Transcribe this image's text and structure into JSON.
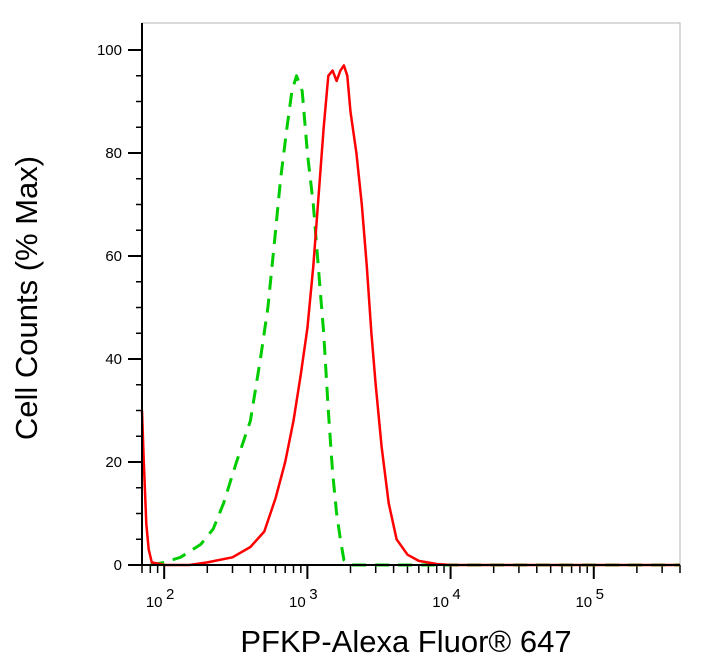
{
  "chart_data": {
    "type": "line",
    "title": "",
    "xlabel": "PFKP-Alexa Fluor® 647",
    "ylabel": "Cell Counts (% Max)",
    "xscale": "log",
    "xlim": [
      70,
      400000
    ],
    "ylim": [
      0,
      100
    ],
    "y_ticks": [
      0,
      20,
      40,
      60,
      80,
      100
    ],
    "y_tick_labels": [
      "0",
      "20",
      "40",
      "60",
      "80",
      "100"
    ],
    "x_ticks": [
      {
        "value": 100,
        "base": "10",
        "exp": "2"
      },
      {
        "value": 1000,
        "base": "10",
        "exp": "3"
      },
      {
        "value": 10000,
        "base": "10",
        "exp": "4"
      },
      {
        "value": 100000,
        "base": "10",
        "exp": "5"
      }
    ],
    "grid": false,
    "legend": "none",
    "series": [
      {
        "color": "#00cc00",
        "style": "dashed",
        "points": [
          [
            80,
            0
          ],
          [
            100,
            0.5
          ],
          [
            130,
            1.5
          ],
          [
            180,
            4
          ],
          [
            220,
            7
          ],
          [
            260,
            12
          ],
          [
            320,
            20
          ],
          [
            400,
            28
          ],
          [
            470,
            40
          ],
          [
            530,
            50
          ],
          [
            590,
            63
          ],
          [
            650,
            75
          ],
          [
            720,
            85
          ],
          [
            780,
            92
          ],
          [
            840,
            95
          ],
          [
            920,
            92
          ],
          [
            1000,
            80
          ],
          [
            1100,
            70
          ],
          [
            1200,
            57
          ],
          [
            1300,
            45
          ],
          [
            1400,
            30
          ],
          [
            1500,
            18
          ],
          [
            1600,
            10
          ],
          [
            1700,
            5
          ],
          [
            1800,
            1
          ],
          [
            2000,
            0
          ],
          [
            5000,
            0
          ],
          [
            400000,
            0
          ]
        ]
      },
      {
        "color": "#ff0000",
        "style": "solid",
        "points": [
          [
            70,
            30
          ],
          [
            72,
            20
          ],
          [
            75,
            8
          ],
          [
            78,
            3
          ],
          [
            82,
            0.5
          ],
          [
            100,
            0
          ],
          [
            150,
            0
          ],
          [
            200,
            0.5
          ],
          [
            300,
            1.5
          ],
          [
            400,
            3.5
          ],
          [
            500,
            6.5
          ],
          [
            600,
            13
          ],
          [
            700,
            20
          ],
          [
            800,
            28
          ],
          [
            900,
            37
          ],
          [
            1000,
            46
          ],
          [
            1100,
            58
          ],
          [
            1200,
            72
          ],
          [
            1300,
            85
          ],
          [
            1400,
            95
          ],
          [
            1500,
            96
          ],
          [
            1600,
            94
          ],
          [
            1700,
            96
          ],
          [
            1800,
            97
          ],
          [
            1900,
            95
          ],
          [
            2000,
            88
          ],
          [
            2200,
            80
          ],
          [
            2400,
            70
          ],
          [
            2600,
            58
          ],
          [
            2800,
            45
          ],
          [
            3000,
            35
          ],
          [
            3300,
            23
          ],
          [
            3700,
            12
          ],
          [
            4200,
            5
          ],
          [
            5000,
            2
          ],
          [
            6000,
            0.8
          ],
          [
            8000,
            0.2
          ],
          [
            10000,
            0
          ],
          [
            400000,
            0
          ]
        ]
      }
    ]
  }
}
